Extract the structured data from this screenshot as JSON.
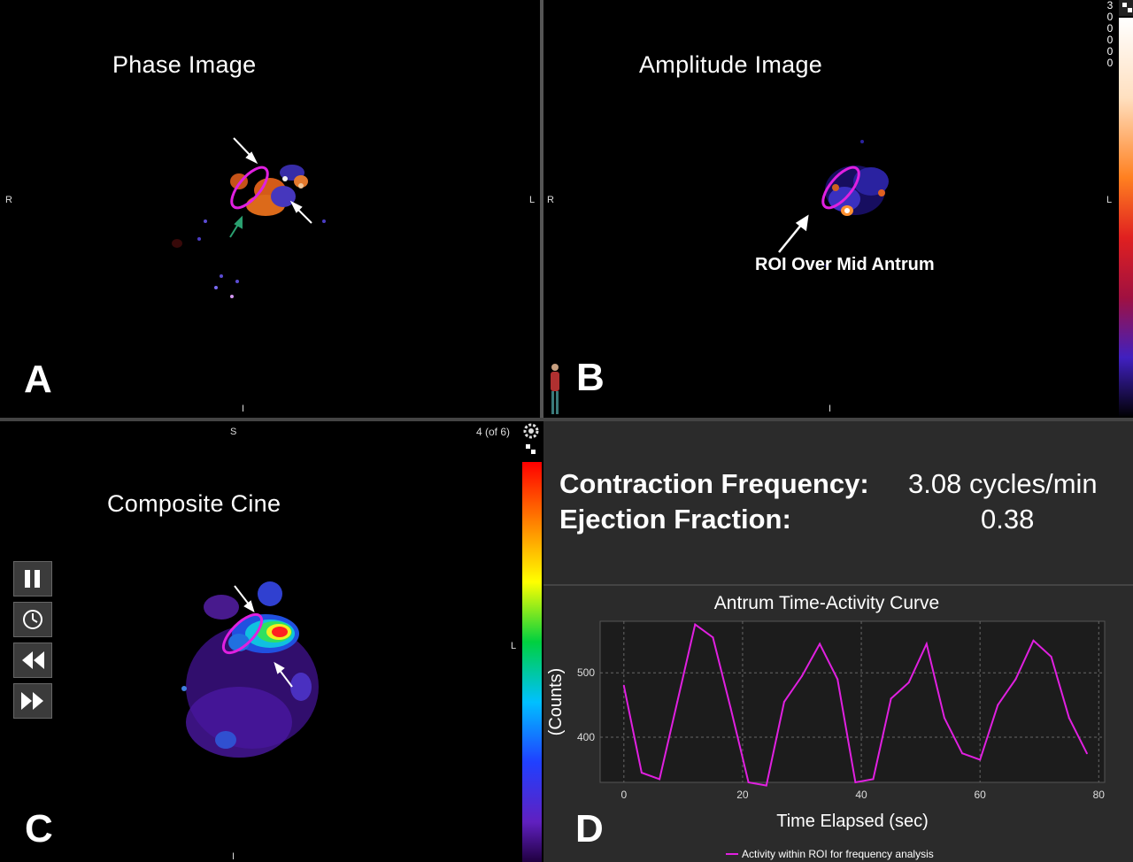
{
  "panels": {
    "a": {
      "title": "Phase Image",
      "letter": "A",
      "orient_left": "R",
      "orient_right": "L",
      "orient_bottom": "I"
    },
    "b": {
      "title": "Amplitude Image",
      "letter": "B",
      "orient_left": "R",
      "orient_right": "L",
      "orient_bottom": "I",
      "annotation": "ROI Over Mid Antrum",
      "colorbar_ticks": [
        "3",
        "0",
        "0",
        "0",
        "0",
        "0"
      ]
    },
    "c": {
      "title": "Composite Cine",
      "letter": "C",
      "orient_top": "S",
      "orient_right": "L",
      "orient_bottom": "I",
      "frame_counter": "4 (of 6)",
      "controls": [
        "pause-icon",
        "clock-icon",
        "rewind-icon",
        "fast-forward-icon"
      ]
    },
    "d": {
      "letter": "D",
      "stats": {
        "frequency_label": "Contraction Frequency:",
        "frequency_value": "3.08 cycles/min",
        "ejection_label": "Ejection Fraction:",
        "ejection_value": "0.38"
      }
    }
  },
  "colors": {
    "roi": "#e020e0",
    "curve": "#e020e0",
    "panel_bg": "#000000",
    "chart_bg": "#2b2b2b"
  },
  "chart_data": {
    "type": "line",
    "title": "Antrum Time-Activity Curve",
    "xlabel": "Time Elapsed (sec)",
    "ylabel": "(Counts)",
    "xlim": [
      -4,
      81
    ],
    "ylim": [
      330,
      580
    ],
    "x_ticks": [
      "0",
      "20",
      "40",
      "60",
      "80"
    ],
    "y_ticks": [
      "400",
      "500"
    ],
    "grid": true,
    "legend_position": "bottom",
    "series": [
      {
        "name": "Activity within ROI for frequency analysis",
        "x": [
          0,
          3,
          6,
          9,
          12,
          15,
          18,
          21,
          24,
          27,
          30,
          33,
          36,
          39,
          42,
          45,
          48,
          51,
          54,
          57,
          60,
          63,
          66,
          69,
          72,
          75,
          78
        ],
        "y": [
          480,
          345,
          335,
          455,
          575,
          555,
          445,
          330,
          325,
          455,
          495,
          545,
          490,
          330,
          335,
          460,
          485,
          545,
          430,
          375,
          365,
          450,
          490,
          550,
          525,
          430,
          375
        ]
      }
    ]
  }
}
